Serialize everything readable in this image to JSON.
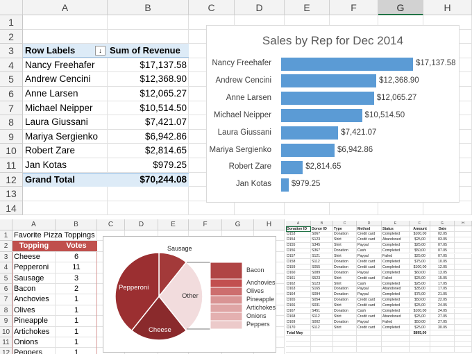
{
  "pivot": {
    "columns": [
      "A",
      "B",
      "C",
      "D",
      "E",
      "F",
      "G",
      "H"
    ],
    "rows": [
      "1",
      "2",
      "3",
      "4",
      "5",
      "6",
      "7",
      "8",
      "9",
      "10",
      "11",
      "12",
      "13",
      "14"
    ],
    "header": {
      "row_labels": "Row Labels",
      "sort_icon": "sort-filter-icon",
      "sum": "Sum of Revenue"
    },
    "items": [
      {
        "name": "Nancy Freehafer",
        "value": "$17,137.58",
        "amount": 17137.58
      },
      {
        "name": "Andrew Cencini",
        "value": "$12,368.90",
        "amount": 12368.9
      },
      {
        "name": "Anne Larsen",
        "value": "$12,065.27",
        "amount": 12065.27
      },
      {
        "name": "Michael Neipper",
        "value": "$10,514.50",
        "amount": 10514.5
      },
      {
        "name": "Laura Giussani",
        "value": "$7,421.07",
        "amount": 7421.07
      },
      {
        "name": "Mariya Sergienko",
        "value": "$6,942.86",
        "amount": 6942.86
      },
      {
        "name": "Robert Zare",
        "value": "$2,814.65",
        "amount": 2814.65
      },
      {
        "name": "Jan Kotas",
        "value": "$979.25",
        "amount": 979.25
      }
    ],
    "grand_total": {
      "label": "Grand Total",
      "value": "$70,244.08"
    },
    "selected_column": "G"
  },
  "chart_data": [
    {
      "type": "bar",
      "orientation": "horizontal",
      "title": "Sales by Rep for Dec 2014",
      "categories": [
        "Nancy Freehafer",
        "Andrew Cencini",
        "Anne Larsen",
        "Michael Neipper",
        "Laura Giussani",
        "Mariya Sergienko",
        "Robert Zare",
        "Jan Kotas"
      ],
      "values": [
        17137.58,
        12368.9,
        12065.27,
        10514.5,
        7421.07,
        6942.86,
        2814.65,
        979.25
      ],
      "data_labels": [
        "$17,137.58",
        "$12,368.90",
        "$12,065.27",
        "$10,514.50",
        "$7,421.07",
        "$6,942.86",
        "$2,814.65",
        "$979.25"
      ],
      "color": "#5b9bd5"
    },
    {
      "type": "pie",
      "subtype": "bar-of-pie",
      "slices": [
        {
          "label": "Sausage",
          "value": 3
        },
        {
          "label": "Other",
          "value": 8
        },
        {
          "label": "Cheese",
          "value": 6
        },
        {
          "label": "Pepperoni",
          "value": 11
        }
      ],
      "secondary": [
        {
          "label": "Bacon",
          "value": 2
        },
        {
          "label": "Anchovies",
          "value": 1
        },
        {
          "label": "Olives",
          "value": 1
        },
        {
          "label": "Pineapple",
          "value": 1
        },
        {
          "label": "Artichokes",
          "value": 1
        },
        {
          "label": "Onions",
          "value": 1
        },
        {
          "label": "Peppers",
          "value": 1
        }
      ],
      "colors": {
        "main": "#9b2f31",
        "other": "#f2dcdd",
        "secondary": [
          "#b04444",
          "#c24f4f",
          "#cd6e6e",
          "#d99494",
          "#dfa5a5",
          "#e4b0b0",
          "#eccaca"
        ]
      }
    }
  ],
  "pizza": {
    "columns": [
      "A",
      "B",
      "C",
      "D",
      "E",
      "F",
      "G",
      "H"
    ],
    "rows": [
      "1",
      "2",
      "3",
      "4",
      "5",
      "6",
      "7",
      "8",
      "9",
      "10",
      "11",
      "12"
    ],
    "title": "Favorite Pizza Toppings",
    "header": {
      "topping": "Topping",
      "votes": "Votes"
    },
    "items": [
      {
        "topping": "Cheese",
        "votes": "6"
      },
      {
        "topping": "Pepperoni",
        "votes": "11"
      },
      {
        "topping": "Sausage",
        "votes": "3"
      },
      {
        "topping": "Bacon",
        "votes": "2"
      },
      {
        "topping": "Anchovies",
        "votes": "1"
      },
      {
        "topping": "Olives",
        "votes": "1"
      },
      {
        "topping": "Pineapple",
        "votes": "1"
      },
      {
        "topping": "Artichokes",
        "votes": "1"
      },
      {
        "topping": "Onions",
        "votes": "1"
      },
      {
        "topping": "Peppers",
        "votes": "1"
      }
    ],
    "header_color": "#c0504d"
  },
  "donations": {
    "columns": [
      "A",
      "B",
      "C",
      "D",
      "E",
      "F",
      "G",
      "H"
    ],
    "headers": [
      "Donation ID",
      "Donor ID",
      "Type",
      "Method",
      "Status",
      "Amount",
      "Date"
    ],
    "rows": [
      [
        "D153",
        "S067",
        "Donation",
        "Credit card",
        "Completed",
        "$100,00",
        "02.05"
      ],
      [
        "D154",
        "S123",
        "Shirt",
        "Credit card",
        "Abandoned",
        "$25,00",
        "03.05"
      ],
      [
        "D155",
        "S345",
        "Shirt",
        "Paypal",
        "Completed",
        "$25,00",
        "07.05"
      ],
      [
        "D156",
        "S367",
        "Donation",
        "Cash",
        "Completed",
        "$50,00",
        "07.05"
      ],
      [
        "D157",
        "S121",
        "Shirt",
        "Paypal",
        "Failed",
        "$25,00",
        "07.05"
      ],
      [
        "D158",
        "S112",
        "Donation",
        "Credit card",
        "Completed",
        "$75,00",
        "10.05"
      ],
      [
        "D159",
        "S055",
        "Donation",
        "Credit card",
        "Completed",
        "$100,00",
        "12.05"
      ],
      [
        "D160",
        "S089",
        "Donation",
        "Paypal",
        "Completed",
        "$60,00",
        "13.05"
      ],
      [
        "D161",
        "S523",
        "Shirt",
        "Credit card",
        "Failed",
        "$25,00",
        "15.05"
      ],
      [
        "D162",
        "S123",
        "Shirt",
        "Cash",
        "Completed",
        "$25,00",
        "17.05"
      ],
      [
        "D163",
        "S165",
        "Donation",
        "Paypal",
        "Abandoned",
        "$35,00",
        "17.05"
      ],
      [
        "D164",
        "S094",
        "Donation",
        "Paypal",
        "Completed",
        "$75,00",
        "21.05"
      ],
      [
        "D165",
        "S054",
        "Donation",
        "Credit card",
        "Completed",
        "$50,00",
        "22.05"
      ],
      [
        "D166",
        "S031",
        "Shirt",
        "Credit card",
        "Completed",
        "$25,00",
        "24.05"
      ],
      [
        "D167",
        "S451",
        "Donation",
        "Cash",
        "Completed",
        "$100,00",
        "24.05"
      ],
      [
        "D168",
        "S112",
        "Shirt",
        "Credit card",
        "Abandoned",
        "$25,00",
        "27.05"
      ],
      [
        "D169",
        "S002",
        "Donation",
        "Paypal",
        "Failed",
        "$50,00",
        "27.05"
      ],
      [
        "D170",
        "S112",
        "Shirt",
        "Credit card",
        "Completed",
        "$25,00",
        "30.05"
      ]
    ],
    "total": {
      "label": "Total May",
      "value": "$895,00"
    }
  }
}
